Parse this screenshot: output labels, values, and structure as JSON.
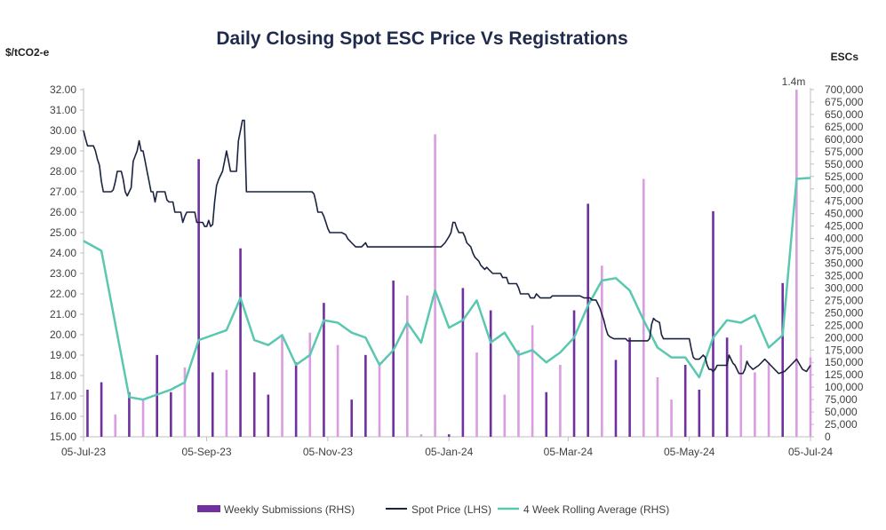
{
  "chart_data": {
    "type": "bar",
    "title": "Daily Closing Spot ESC Price Vs Registrations",
    "ylabel_left": "$/tCO2-e",
    "ylabel_right": "ESCs",
    "ylim_left": [
      15,
      32
    ],
    "ylim_right": [
      0,
      700000
    ],
    "yticks_left": [
      "15.00",
      "16.00",
      "17.00",
      "18.00",
      "19.00",
      "20.00",
      "21.00",
      "22.00",
      "23.00",
      "24.00",
      "25.00",
      "26.00",
      "27.00",
      "28.00",
      "29.00",
      "30.00",
      "31.00",
      "32.00"
    ],
    "yticks_right": [
      "0",
      "25,000",
      "50,000",
      "75,000",
      "100,000",
      "125,000",
      "150,000",
      "175,000",
      "200,000",
      "225,000",
      "250,000",
      "275,000",
      "300,000",
      "325,000",
      "350,000",
      "375,000",
      "400,000",
      "425,000",
      "450,000",
      "475,000",
      "500,000",
      "525,000",
      "550,000",
      "575,000",
      "600,000",
      "625,000",
      "650,000",
      "675,000",
      "700,000"
    ],
    "xticks": [
      "05-Jul-23",
      "05-Sep-23",
      "05-Nov-23",
      "05-Jan-24",
      "05-Mar-24",
      "05-May-24",
      "05-Jul-24"
    ],
    "x_day_range": [
      0,
      366
    ],
    "annotation": "1.4m",
    "legend": [
      "Weekly Submissions (RHS)",
      "Spot Price (LHS)",
      "4 Week Rolling Average (RHS)"
    ],
    "colors": {
      "bar_dark": "#7030a0",
      "bar_light": "#d99de0",
      "spot": "#1a2340",
      "rolling": "#5ac8b0",
      "axis": "#bfbfbf",
      "title": "#1f2a4d"
    },
    "weekly_submissions": {
      "name": "Weekly Submissions (RHS)",
      "days": [
        2,
        9,
        16,
        23,
        30,
        37,
        44,
        51,
        58,
        65,
        72,
        79,
        86,
        93,
        100,
        107,
        114,
        121,
        128,
        135,
        142,
        149,
        156,
        163,
        170,
        177,
        184,
        191,
        198,
        205,
        212,
        219,
        226,
        233,
        240,
        247,
        254,
        261,
        268,
        275,
        282,
        289,
        296,
        303,
        310,
        317,
        324,
        331,
        338,
        345,
        352,
        359,
        366
      ],
      "values": [
        95000,
        110000,
        45000,
        90000,
        75000,
        165000,
        90000,
        140000,
        560000,
        130000,
        135000,
        380000,
        130000,
        85000,
        205000,
        150000,
        210000,
        270000,
        185000,
        75000,
        165000,
        150000,
        315000,
        285000,
        5000,
        610000,
        5000,
        300000,
        170000,
        255000,
        85000,
        175000,
        225000,
        90000,
        145000,
        255000,
        470000,
        345000,
        155000,
        200000,
        520000,
        120000,
        75000,
        145000,
        95000,
        455000,
        200000,
        185000,
        130000,
        150000,
        310000,
        1400000,
        160000
      ],
      "shade": [
        "d",
        "d",
        "l",
        "d",
        "l",
        "d",
        "d",
        "l",
        "d",
        "d",
        "l",
        "d",
        "d",
        "d",
        "l",
        "d",
        "l",
        "d",
        "l",
        "d",
        "d",
        "l",
        "d",
        "l",
        "l",
        "l",
        "d",
        "d",
        "l",
        "d",
        "l",
        "l",
        "l",
        "d",
        "l",
        "d",
        "d",
        "l",
        "d",
        "d",
        "l",
        "l",
        "l",
        "d",
        "d",
        "d",
        "d",
        "l",
        "l",
        "l",
        "d",
        "l",
        "l"
      ]
    },
    "spot_price": {
      "name": "Spot Price (LHS)",
      "points": [
        [
          0,
          30.0
        ],
        [
          1,
          29.6
        ],
        [
          2,
          29.25
        ],
        [
          5,
          29.25
        ],
        [
          6,
          29.0
        ],
        [
          7,
          28.6
        ],
        [
          8,
          28.3
        ],
        [
          9,
          27.5
        ],
        [
          10,
          27.0
        ],
        [
          14,
          27.0
        ],
        [
          15,
          27.1
        ],
        [
          16,
          27.5
        ],
        [
          17,
          28.0
        ],
        [
          19,
          28.0
        ],
        [
          20,
          27.6
        ],
        [
          21,
          27.0
        ],
        [
          22,
          26.8
        ],
        [
          23,
          27.0
        ],
        [
          24,
          27.2
        ],
        [
          25,
          28.5
        ],
        [
          27,
          29.0
        ],
        [
          28,
          29.5
        ],
        [
          29,
          29.0
        ],
        [
          30,
          29.0
        ],
        [
          31,
          28.5
        ],
        [
          32,
          28.0
        ],
        [
          33,
          27.5
        ],
        [
          34,
          27.0
        ],
        [
          35,
          27.0
        ],
        [
          36,
          26.5
        ],
        [
          37,
          27.0
        ],
        [
          41,
          27.0
        ],
        [
          42,
          26.6
        ],
        [
          43,
          26.5
        ],
        [
          45,
          26.5
        ],
        [
          46,
          26.0
        ],
        [
          49,
          26.0
        ],
        [
          50,
          25.5
        ],
        [
          51,
          25.8
        ],
        [
          52,
          26.0
        ],
        [
          56,
          26.0
        ],
        [
          57,
          25.5
        ],
        [
          60,
          25.5
        ],
        [
          61,
          25.3
        ],
        [
          62,
          25.3
        ],
        [
          63,
          25.6
        ],
        [
          64,
          25.3
        ],
        [
          65,
          25.4
        ],
        [
          66,
          26.5
        ],
        [
          67,
          27.3
        ],
        [
          68,
          27.6
        ],
        [
          69,
          27.8
        ],
        [
          70,
          28.0
        ],
        [
          71,
          28.5
        ],
        [
          72,
          29.0
        ],
        [
          73,
          28.5
        ],
        [
          74,
          28.0
        ],
        [
          75,
          28.0
        ],
        [
          76,
          28.0
        ],
        [
          77,
          28.0
        ],
        [
          78,
          29.5
        ],
        [
          79,
          30.0
        ],
        [
          80,
          30.5
        ],
        [
          81,
          30.5
        ],
        [
          82,
          27.0
        ],
        [
          90,
          27.0
        ],
        [
          100,
          27.0
        ],
        [
          105,
          27.0
        ],
        [
          110,
          27.0
        ],
        [
          115,
          27.0
        ],
        [
          116,
          26.9
        ],
        [
          117,
          26.5
        ],
        [
          118,
          26.0
        ],
        [
          120,
          26.0
        ],
        [
          121,
          25.8
        ],
        [
          122,
          25.5
        ],
        [
          123,
          25.2
        ],
        [
          124,
          25.0
        ],
        [
          130,
          25.0
        ],
        [
          132,
          24.9
        ],
        [
          133,
          24.7
        ],
        [
          135,
          24.5
        ],
        [
          137,
          24.3
        ],
        [
          140,
          24.3
        ],
        [
          141,
          24.4
        ],
        [
          142,
          24.5
        ],
        [
          143,
          24.3
        ],
        [
          150,
          24.3
        ],
        [
          160,
          24.3
        ],
        [
          170,
          24.3
        ],
        [
          180,
          24.3
        ],
        [
          182,
          24.5
        ],
        [
          184,
          24.8
        ],
        [
          185,
          25.0
        ],
        [
          186,
          25.5
        ],
        [
          187,
          25.5
        ],
        [
          188,
          25.2
        ],
        [
          189,
          25.0
        ],
        [
          191,
          25.0
        ],
        [
          192,
          24.8
        ],
        [
          193,
          24.5
        ],
        [
          195,
          24.3
        ],
        [
          196,
          24.0
        ],
        [
          197,
          23.8
        ],
        [
          199,
          23.6
        ],
        [
          200,
          23.4
        ],
        [
          202,
          23.2
        ],
        [
          203,
          23.3
        ],
        [
          204,
          23.2
        ],
        [
          206,
          23.0
        ],
        [
          210,
          23.0
        ],
        [
          211,
          22.8
        ],
        [
          213,
          22.8
        ],
        [
          214,
          22.5
        ],
        [
          215,
          22.5
        ],
        [
          218,
          22.5
        ],
        [
          219,
          22.3
        ],
        [
          220,
          22.0
        ],
        [
          224,
          22.0
        ],
        [
          225,
          21.8
        ],
        [
          226,
          21.8
        ],
        [
          227,
          21.8
        ],
        [
          228,
          22.0
        ],
        [
          229,
          21.9
        ],
        [
          230,
          21.8
        ],
        [
          232,
          21.8
        ],
        [
          235,
          21.8
        ],
        [
          236,
          21.9
        ],
        [
          240,
          21.9
        ],
        [
          245,
          21.9
        ],
        [
          250,
          21.9
        ],
        [
          252,
          21.8
        ],
        [
          255,
          21.8
        ],
        [
          256,
          21.7
        ],
        [
          258,
          21.7
        ],
        [
          259,
          21.5
        ],
        [
          260,
          21.3
        ],
        [
          261,
          21.0
        ],
        [
          262,
          20.7
        ],
        [
          263,
          20.3
        ],
        [
          264,
          20.0
        ],
        [
          265,
          19.9
        ],
        [
          267,
          19.8
        ],
        [
          269,
          19.8
        ],
        [
          270,
          19.8
        ],
        [
          272,
          19.8
        ],
        [
          273,
          19.8
        ],
        [
          274,
          19.7
        ],
        [
          276,
          19.7
        ],
        [
          278,
          19.7
        ],
        [
          280,
          19.7
        ],
        [
          282,
          19.7
        ],
        [
          283,
          19.7
        ],
        [
          284,
          19.7
        ],
        [
          285,
          19.8
        ],
        [
          286,
          20.5
        ],
        [
          287,
          20.8
        ],
        [
          288,
          20.7
        ],
        [
          290,
          20.6
        ],
        [
          291,
          20.0
        ],
        [
          292,
          19.8
        ],
        [
          294,
          19.8
        ],
        [
          296,
          19.8
        ],
        [
          300,
          19.8
        ],
        [
          303,
          19.8
        ],
        [
          305,
          19.8
        ],
        [
          306,
          19.3
        ],
        [
          307,
          18.9
        ],
        [
          308,
          18.8
        ],
        [
          310,
          18.8
        ],
        [
          311,
          18.9
        ],
        [
          312,
          19.0
        ],
        [
          313,
          18.9
        ],
        [
          314,
          18.5
        ],
        [
          315,
          18.3
        ],
        [
          316,
          18.3
        ],
        [
          317,
          18.2
        ],
        [
          318,
          18.3
        ],
        [
          319,
          18.5
        ],
        [
          320,
          18.5
        ],
        [
          324,
          18.5
        ],
        [
          325,
          19.0
        ],
        [
          326,
          18.8
        ],
        [
          327,
          18.6
        ],
        [
          328,
          18.5
        ],
        [
          329,
          18.3
        ],
        [
          330,
          18.1
        ],
        [
          332,
          18.1
        ],
        [
          333,
          18.3
        ],
        [
          334,
          18.7
        ],
        [
          335,
          18.5
        ],
        [
          337,
          18.3
        ],
        [
          340,
          18.5
        ],
        [
          343,
          18.8
        ],
        [
          346,
          18.5
        ],
        [
          349,
          18.2
        ],
        [
          350,
          18.1
        ],
        [
          353,
          18.2
        ],
        [
          356,
          18.5
        ],
        [
          359,
          18.8
        ],
        [
          362,
          18.3
        ],
        [
          364,
          18.2
        ],
        [
          366,
          18.5
        ]
      ]
    },
    "rolling_avg": {
      "name": "4 Week Rolling Average (RHS)",
      "points": [
        [
          0,
          395000
        ],
        [
          9,
          375000
        ],
        [
          23,
          80000
        ],
        [
          30,
          75000
        ],
        [
          37,
          85000
        ],
        [
          44,
          95000
        ],
        [
          51,
          110000
        ],
        [
          58,
          195000
        ],
        [
          65,
          205000
        ],
        [
          72,
          215000
        ],
        [
          79,
          280000
        ],
        [
          86,
          195000
        ],
        [
          93,
          185000
        ],
        [
          100,
          205000
        ],
        [
          107,
          145000
        ],
        [
          114,
          165000
        ],
        [
          121,
          235000
        ],
        [
          128,
          230000
        ],
        [
          135,
          210000
        ],
        [
          142,
          200000
        ],
        [
          149,
          145000
        ],
        [
          156,
          175000
        ],
        [
          163,
          230000
        ],
        [
          170,
          190000
        ],
        [
          177,
          295000
        ],
        [
          184,
          220000
        ],
        [
          191,
          235000
        ],
        [
          198,
          275000
        ],
        [
          205,
          190000
        ],
        [
          212,
          210000
        ],
        [
          219,
          165000
        ],
        [
          226,
          175000
        ],
        [
          233,
          150000
        ],
        [
          240,
          170000
        ],
        [
          247,
          200000
        ],
        [
          254,
          265000
        ],
        [
          261,
          315000
        ],
        [
          268,
          320000
        ],
        [
          275,
          295000
        ],
        [
          282,
          235000
        ],
        [
          289,
          180000
        ],
        [
          296,
          160000
        ],
        [
          303,
          160000
        ],
        [
          310,
          120000
        ],
        [
          317,
          200000
        ],
        [
          324,
          235000
        ],
        [
          331,
          230000
        ],
        [
          338,
          245000
        ],
        [
          345,
          180000
        ],
        [
          352,
          205000
        ],
        [
          359,
          520000
        ],
        [
          366,
          522000
        ]
      ]
    }
  }
}
